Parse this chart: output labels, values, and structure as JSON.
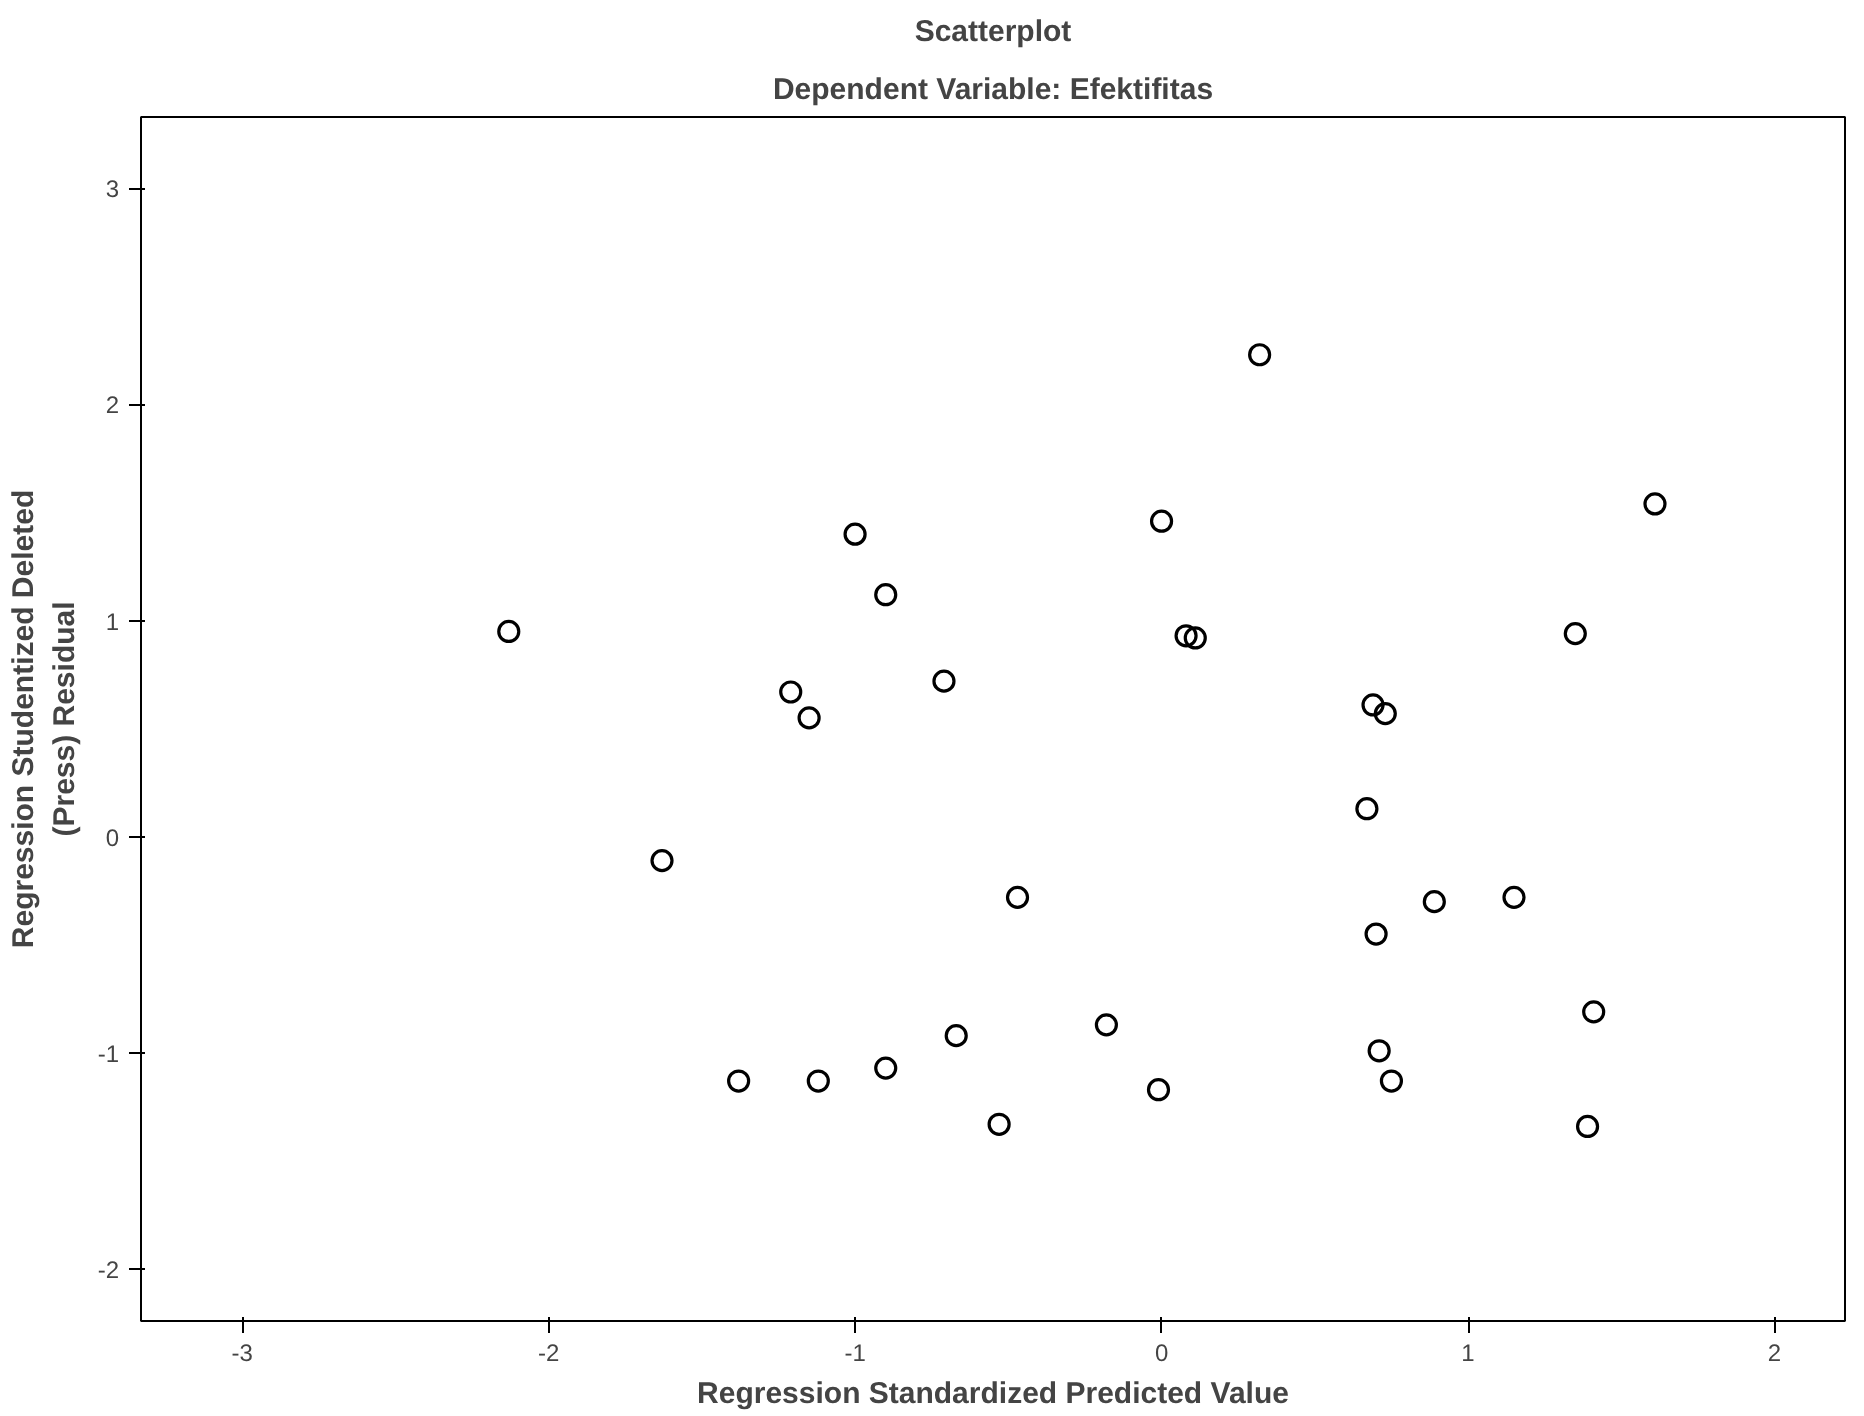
{
  "chart_data": {
    "type": "scatter",
    "title": "Scatterplot",
    "subtitle": "Dependent Variable: Efektifitas",
    "xlabel": "Regression Standardized Predicted Value",
    "ylabel": "Regression Studentized Deleted\n(Press) Residual",
    "x": [
      -2.13,
      -1.63,
      -1.38,
      -1.21,
      -1.15,
      -1.12,
      -1.0,
      -0.9,
      -0.9,
      -0.71,
      -0.67,
      -0.47,
      -0.53,
      -0.18,
      0.0,
      -0.01,
      0.32,
      0.08,
      0.11,
      0.67,
      0.69,
      0.73,
      0.7,
      0.71,
      0.75,
      0.89,
      1.15,
      1.35,
      1.41,
      1.39,
      1.61
    ],
    "series": [
      {
        "color": "#000000",
        "values": [
          0.95,
          -0.11,
          -1.13,
          0.67,
          0.55,
          -1.13,
          1.4,
          1.12,
          -1.07,
          0.72,
          -0.92,
          -0.28,
          -1.33,
          -0.87,
          1.46,
          -1.17,
          2.23,
          0.93,
          0.92,
          0.13,
          0.61,
          0.57,
          -0.45,
          -0.99,
          -1.13,
          -0.3,
          -0.28,
          0.94,
          -0.81,
          -1.34,
          1.54
        ]
      }
    ],
    "xlim": [
      -3.33,
      2.23
    ],
    "ylim": [
      -2.24,
      3.33
    ],
    "xticks": [
      -3,
      -2,
      -1,
      0,
      1,
      2
    ],
    "yticks": [
      -2,
      -1,
      0,
      1,
      2,
      3
    ],
    "grid": false,
    "marker": "circle"
  }
}
